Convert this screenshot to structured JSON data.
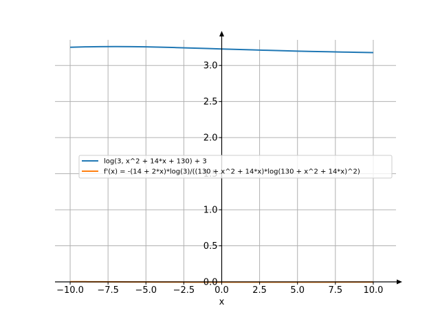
{
  "chart_data": {
    "type": "line",
    "title": "",
    "xlabel": "x",
    "ylabel": "",
    "xlim": [
      -11,
      11.5
    ],
    "ylim": [
      0,
      3.45
    ],
    "grid": true,
    "legend_position": "center-left",
    "x_ticks": [
      -10,
      -7.5,
      -5,
      -2.5,
      0,
      2.5,
      5,
      7.5,
      10
    ],
    "x_tick_labels": [
      "−10.0",
      "−7.5",
      "−5.0",
      "−2.5",
      "0.0",
      "2.5",
      "5.0",
      "7.5",
      "10.0"
    ],
    "y_ticks": [
      0,
      0.5,
      1,
      1.5,
      2,
      2.5,
      3
    ],
    "y_tick_labels": [
      "0.0",
      "0.5",
      "1.0",
      "1.5",
      "2.0",
      "2.5",
      "3.0"
    ],
    "series": [
      {
        "name": "log(3, x^2 + 14*x + 130) + 3",
        "color": "#1f77b4",
        "x": [
          -10,
          -9,
          -8,
          -7,
          -6,
          -5,
          -4,
          -3,
          -2,
          -1,
          0,
          1,
          2,
          3,
          4,
          5,
          6,
          7,
          8,
          9,
          10
        ],
        "y": [
          3.252,
          3.258,
          3.261,
          3.262,
          3.261,
          3.258,
          3.254,
          3.248,
          3.242,
          3.235,
          3.229,
          3.222,
          3.216,
          3.21,
          3.204,
          3.199,
          3.194,
          3.19,
          3.186,
          3.182,
          3.178
        ]
      },
      {
        "name": "f'(x) = -(14 + 2*x)*log(3)/((130 + x^2 + 14*x)*log(130 + x^2 + 14*x)^2)",
        "color": "#ff7f0e",
        "x": [
          -10,
          -9,
          -8,
          -7,
          -6,
          -5,
          -4,
          -3,
          -2,
          -1,
          0,
          1,
          2,
          3,
          4,
          5,
          6,
          7,
          8,
          9,
          10
        ],
        "y": [
          0.0026,
          0.0018,
          0.0009,
          0.0,
          -0.0009,
          -0.0017,
          -0.0024,
          -0.003,
          -0.0034,
          -0.0037,
          -0.0039,
          -0.0039,
          -0.0039,
          -0.0038,
          -0.0037,
          -0.0035,
          -0.0033,
          -0.0031,
          -0.0029,
          -0.0027,
          -0.0025
        ]
      }
    ]
  }
}
